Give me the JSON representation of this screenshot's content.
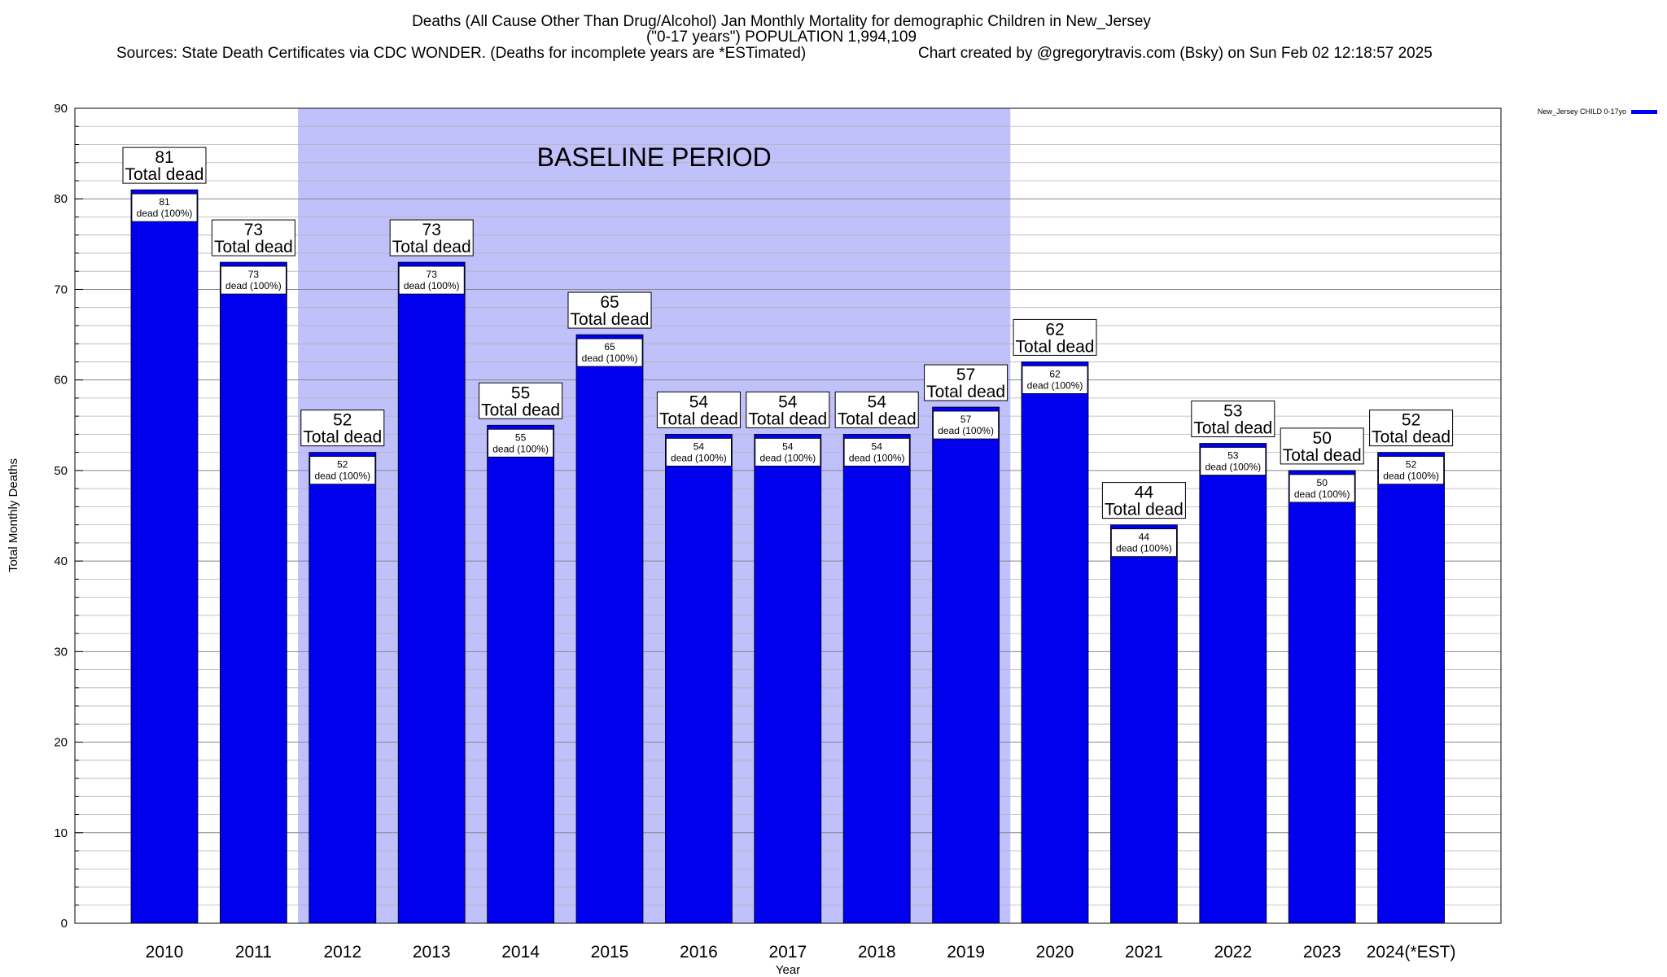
{
  "chart_data": {
    "type": "bar",
    "title_lines": [
      "Deaths (All Cause Other Than Drug/Alcohol) Jan Monthly Mortality for demographic Children in New_Jersey",
      "(\"0-17 years\") POPULATION 1,994,109"
    ],
    "sources_text": "Sources: State Death Certificates via CDC WONDER. (Deaths for incomplete years are *ESTimated)",
    "credit_text": "Chart created by @gregorytravis.com (Bsky) on Sun Feb 02 12:18:57 2025",
    "xlabel": "Year",
    "ylabel": "Total Monthly Deaths",
    "ylim": [
      0,
      90
    ],
    "yticks": [
      0,
      10,
      20,
      30,
      40,
      50,
      60,
      70,
      80,
      90
    ],
    "categories": [
      "2010",
      "2011",
      "2012",
      "2013",
      "2014",
      "2015",
      "2016",
      "2017",
      "2018",
      "2019",
      "2020",
      "2021",
      "2022",
      "2023",
      "2024(*EST)"
    ],
    "series": [
      {
        "name": "New_Jersey CHILD 0-17yo",
        "color": "#0000ee",
        "values": [
          81,
          73,
          52,
          73,
          55,
          65,
          54,
          54,
          54,
          57,
          62,
          44,
          53,
          50,
          52
        ]
      }
    ],
    "outer_label_suffix": "Total dead",
    "inner_label_suffix": "dead (100%)",
    "baseline": {
      "label": "BASELINE PERIOD",
      "start_category": "2012",
      "end_category": "2019",
      "color": "#c0c0fa"
    },
    "legend": {
      "position": "top-right",
      "label": "New_Jersey CHILD 0-17yo"
    },
    "grid": true
  }
}
